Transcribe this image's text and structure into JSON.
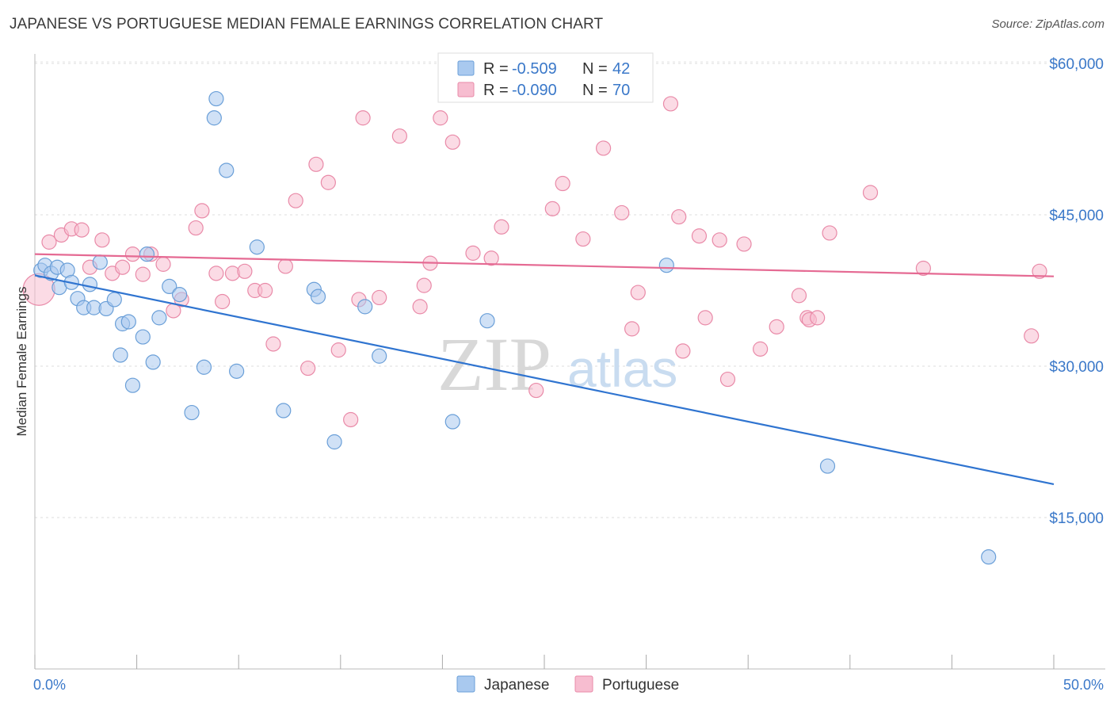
{
  "title": "JAPANESE VS PORTUGUESE MEDIAN FEMALE EARNINGS CORRELATION CHART",
  "source": "Source: ZipAtlas.com",
  "watermark": {
    "zip": "ZIP",
    "atlas": "atlas"
  },
  "legend": {
    "r_label": "R =",
    "n_label": "N =",
    "rows": [
      {
        "r": "-0.509",
        "n": "42",
        "color": "#a9c9ef",
        "stroke": "#6a9fd8"
      },
      {
        "r": "-0.090",
        "n": "70",
        "color": "#f7bdd0",
        "stroke": "#e98aa8"
      }
    ]
  },
  "bottom_legend": [
    "Japanese",
    "Portuguese"
  ],
  "chart_data": {
    "type": "scatter",
    "title": "JAPANESE VS PORTUGUESE MEDIAN FEMALE EARNINGS CORRELATION CHART",
    "xlabel": "",
    "ylabel": "Median Female Earnings",
    "xlim": [
      0,
      50
    ],
    "ylim": [
      0,
      63000
    ],
    "x_tick_labels": [
      "0.0%",
      "50.0%"
    ],
    "y_ticks": [
      15000,
      30000,
      45000,
      60000
    ],
    "y_tick_labels": [
      "$15,000",
      "$30,000",
      "$45,000",
      "$60,000"
    ],
    "grid": true,
    "legend_position": "top-center",
    "series": [
      {
        "name": "Japanese",
        "color": "#a9c9ef",
        "line_color": "#2f74d0",
        "trend": {
          "x": [
            0,
            50
          ],
          "y": [
            39000,
            18300
          ]
        },
        "points": [
          [
            0.3,
            39.5
          ],
          [
            0.5,
            40.0
          ],
          [
            0.8,
            39.2
          ],
          [
            1.1,
            39.8
          ],
          [
            1.2,
            37.8
          ],
          [
            1.6,
            39.5
          ],
          [
            1.8,
            38.3
          ],
          [
            2.1,
            36.7
          ],
          [
            2.4,
            35.8
          ],
          [
            2.7,
            38.1
          ],
          [
            2.9,
            35.8
          ],
          [
            3.2,
            40.3
          ],
          [
            3.5,
            35.7
          ],
          [
            3.9,
            36.6
          ],
          [
            4.2,
            31.1
          ],
          [
            4.3,
            34.2
          ],
          [
            4.6,
            34.4
          ],
          [
            4.8,
            28.1
          ],
          [
            5.3,
            32.9
          ],
          [
            5.5,
            41.1
          ],
          [
            5.8,
            30.4
          ],
          [
            6.1,
            34.8
          ],
          [
            6.6,
            37.9
          ],
          [
            7.1,
            37.1
          ],
          [
            7.7,
            25.4
          ],
          [
            8.3,
            29.9
          ],
          [
            8.8,
            54.6
          ],
          [
            8.9,
            56.5
          ],
          [
            9.4,
            49.4
          ],
          [
            9.9,
            29.5
          ],
          [
            10.9,
            41.8
          ],
          [
            12.2,
            25.6
          ],
          [
            13.7,
            37.6
          ],
          [
            13.9,
            36.9
          ],
          [
            14.7,
            22.5
          ],
          [
            16.2,
            35.9
          ],
          [
            16.9,
            31.0
          ],
          [
            20.5,
            24.5
          ],
          [
            22.2,
            34.5
          ],
          [
            31.0,
            40.0
          ],
          [
            38.9,
            20.1
          ],
          [
            46.8,
            11.1
          ]
        ],
        "y_units": "thousands of dollars"
      },
      {
        "name": "Portuguese",
        "color": "#f7bdd0",
        "line_color": "#e56a93",
        "trend": {
          "x": [
            0,
            50
          ],
          "y": [
            41100,
            38900
          ]
        },
        "points": [
          [
            0.2,
            37.6
          ],
          [
            0.7,
            42.3
          ],
          [
            1.3,
            43.0
          ],
          [
            1.8,
            43.6
          ],
          [
            2.3,
            43.5
          ],
          [
            2.7,
            39.8
          ],
          [
            3.3,
            42.5
          ],
          [
            3.8,
            39.2
          ],
          [
            4.3,
            39.8
          ],
          [
            4.8,
            41.1
          ],
          [
            5.3,
            39.1
          ],
          [
            5.7,
            41.1
          ],
          [
            6.3,
            40.1
          ],
          [
            6.8,
            35.5
          ],
          [
            7.2,
            36.6
          ],
          [
            7.9,
            43.7
          ],
          [
            8.2,
            45.4
          ],
          [
            8.9,
            39.2
          ],
          [
            9.2,
            36.4
          ],
          [
            9.7,
            39.2
          ],
          [
            10.3,
            39.4
          ],
          [
            10.8,
            37.5
          ],
          [
            11.3,
            37.5
          ],
          [
            11.7,
            32.2
          ],
          [
            12.3,
            39.9
          ],
          [
            12.8,
            46.4
          ],
          [
            13.4,
            29.8
          ],
          [
            13.8,
            50.0
          ],
          [
            14.4,
            48.2
          ],
          [
            14.9,
            31.6
          ],
          [
            15.5,
            24.7
          ],
          [
            15.9,
            36.6
          ],
          [
            16.1,
            54.6
          ],
          [
            16.9,
            36.8
          ],
          [
            17.9,
            52.8
          ],
          [
            18.9,
            35.9
          ],
          [
            19.1,
            38.0
          ],
          [
            19.4,
            40.2
          ],
          [
            19.9,
            54.6
          ],
          [
            20.5,
            52.2
          ],
          [
            21.5,
            41.2
          ],
          [
            22.4,
            40.7
          ],
          [
            22.9,
            43.8
          ],
          [
            24.6,
            27.6
          ],
          [
            25.4,
            45.6
          ],
          [
            25.9,
            48.1
          ],
          [
            26.9,
            42.6
          ],
          [
            27.9,
            51.6
          ],
          [
            28.8,
            45.2
          ],
          [
            29.3,
            33.7
          ],
          [
            29.6,
            37.3
          ],
          [
            31.2,
            56.0
          ],
          [
            31.6,
            44.8
          ],
          [
            31.8,
            31.5
          ],
          [
            32.6,
            42.9
          ],
          [
            32.9,
            34.8
          ],
          [
            33.6,
            42.5
          ],
          [
            34.0,
            28.7
          ],
          [
            34.8,
            42.1
          ],
          [
            35.6,
            31.7
          ],
          [
            36.4,
            33.9
          ],
          [
            37.5,
            37.0
          ],
          [
            37.9,
            34.8
          ],
          [
            38.0,
            34.6
          ],
          [
            38.4,
            34.8
          ],
          [
            39.0,
            43.2
          ],
          [
            41.0,
            47.2
          ],
          [
            43.6,
            39.7
          ],
          [
            48.9,
            33.0
          ],
          [
            49.3,
            39.4
          ]
        ],
        "y_units": "thousands of dollars"
      }
    ]
  }
}
